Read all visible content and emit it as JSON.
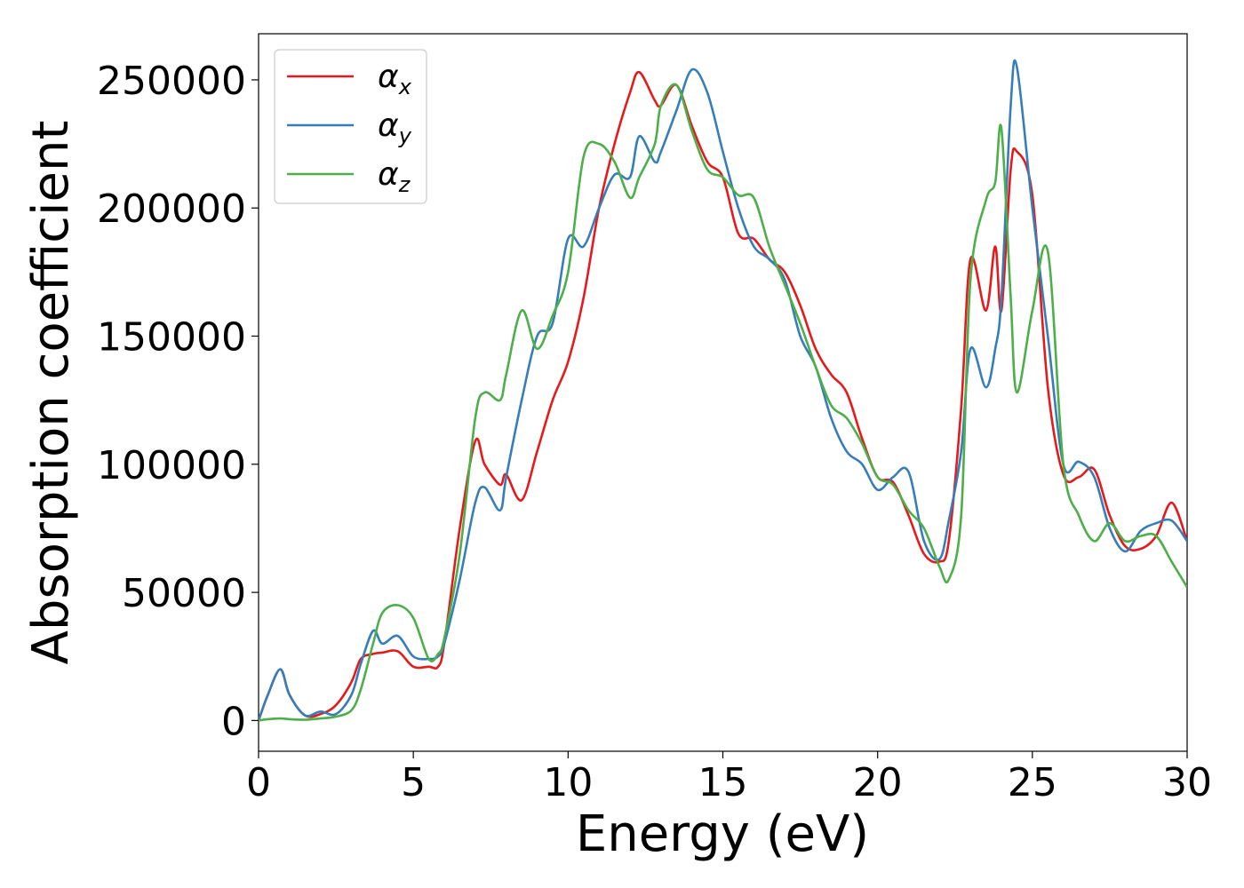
{
  "chart_data": {
    "type": "line",
    "title": "",
    "xlabel": "Energy (eV)",
    "ylabel": "Absorption coefficient",
    "xlim": [
      0,
      30
    ],
    "ylim": [
      -12000,
      268000
    ],
    "xticks": [
      0,
      5,
      10,
      15,
      20,
      25,
      30
    ],
    "xtick_labels": [
      "0",
      "5",
      "10",
      "15",
      "20",
      "25",
      "30"
    ],
    "yticks": [
      0,
      50000,
      100000,
      150000,
      200000,
      250000
    ],
    "ytick_labels": [
      "0",
      "50000",
      "100000",
      "150000",
      "200000",
      "250000"
    ],
    "grid": false,
    "legend_position": "top-left",
    "series": [
      {
        "name": "α",
        "subscript": "x",
        "color": "#e41a1c",
        "x": [
          0,
          0.3,
          0.7,
          1.0,
          1.5,
          2.0,
          2.5,
          3.0,
          3.3,
          3.7,
          4.0,
          4.5,
          5.0,
          5.5,
          5.8,
          6.0,
          6.5,
          7.0,
          7.3,
          7.8,
          8.0,
          8.5,
          9.0,
          9.5,
          10.0,
          10.5,
          11.0,
          11.5,
          12.0,
          12.3,
          12.8,
          13.0,
          13.5,
          14.0,
          14.5,
          15.0,
          15.5,
          16.0,
          16.5,
          17.0,
          17.5,
          18.0,
          18.5,
          19.0,
          19.5,
          20.0,
          20.5,
          21.0,
          21.5,
          22.0,
          22.3,
          22.7,
          23.0,
          23.5,
          23.8,
          24.0,
          24.3,
          24.5,
          25.0,
          25.5,
          26.0,
          26.5,
          27.0,
          27.5,
          28.0,
          28.5,
          29.0,
          29.5,
          30.0
        ],
        "y": [
          0,
          10000,
          20000,
          10000,
          2000,
          2500,
          6000,
          15000,
          24000,
          26000,
          26500,
          27000,
          21000,
          21000,
          21000,
          30000,
          75000,
          109000,
          100000,
          92000,
          96000,
          86000,
          105000,
          125000,
          140000,
          165000,
          200000,
          225000,
          245000,
          253000,
          242000,
          240000,
          248000,
          232000,
          218000,
          212000,
          190000,
          188000,
          180000,
          175000,
          162000,
          145000,
          135000,
          128000,
          110000,
          95000,
          93000,
          80000,
          65000,
          62000,
          70000,
          122000,
          180000,
          160000,
          185000,
          160000,
          215000,
          222000,
          205000,
          130000,
          96000,
          95000,
          98000,
          80000,
          68000,
          67000,
          72000,
          85000,
          70000
        ]
      },
      {
        "name": "α",
        "subscript": "y",
        "color": "#377eb8",
        "x": [
          0,
          0.3,
          0.7,
          1.0,
          1.5,
          2.0,
          2.5,
          3.0,
          3.3,
          3.7,
          4.0,
          4.5,
          5.0,
          5.5,
          5.8,
          6.0,
          6.5,
          7.0,
          7.3,
          7.8,
          8.0,
          8.5,
          9.0,
          9.5,
          10.0,
          10.5,
          11.0,
          11.5,
          12.0,
          12.3,
          12.8,
          13.0,
          13.5,
          14.0,
          14.5,
          15.0,
          15.5,
          16.0,
          16.5,
          17.0,
          17.5,
          18.0,
          18.5,
          19.0,
          19.5,
          20.0,
          20.5,
          21.0,
          21.5,
          22.0,
          22.3,
          22.7,
          23.0,
          23.5,
          23.8,
          24.0,
          24.3,
          24.5,
          25.0,
          25.5,
          26.0,
          26.5,
          27.0,
          27.5,
          28.0,
          28.5,
          29.0,
          29.5,
          30.0
        ],
        "y": [
          0,
          10000,
          20000,
          10000,
          2000,
          3500,
          2500,
          10000,
          22000,
          35000,
          30000,
          33000,
          25000,
          24000,
          25000,
          30000,
          55000,
          85000,
          91000,
          82000,
          95000,
          125000,
          150000,
          155000,
          188000,
          185000,
          200000,
          213000,
          212000,
          228000,
          218000,
          222000,
          238000,
          254000,
          245000,
          222000,
          200000,
          185000,
          180000,
          172000,
          150000,
          138000,
          118000,
          105000,
          100000,
          90000,
          95000,
          97000,
          70000,
          63000,
          78000,
          105000,
          145000,
          130000,
          145000,
          165000,
          240000,
          255000,
          200000,
          150000,
          100000,
          101000,
          95000,
          75000,
          66000,
          74000,
          77000,
          78000,
          70000
        ]
      },
      {
        "name": "α",
        "subscript": "z",
        "color": "#4daf4a",
        "x": [
          0,
          0.3,
          0.7,
          1.0,
          1.5,
          2.0,
          2.5,
          3.0,
          3.3,
          3.7,
          4.0,
          4.5,
          5.0,
          5.5,
          5.8,
          6.0,
          6.5,
          7.0,
          7.3,
          7.8,
          8.0,
          8.5,
          9.0,
          9.5,
          10.0,
          10.5,
          11.0,
          11.5,
          12.0,
          12.3,
          12.8,
          13.0,
          13.5,
          14.0,
          14.5,
          15.0,
          15.5,
          16.0,
          16.5,
          17.0,
          17.5,
          18.0,
          18.5,
          19.0,
          19.5,
          20.0,
          20.5,
          21.0,
          21.5,
          22.0,
          22.3,
          22.7,
          23.0,
          23.5,
          23.8,
          24.0,
          24.3,
          24.5,
          25.0,
          25.5,
          26.0,
          26.5,
          27.0,
          27.5,
          28.0,
          28.5,
          29.0,
          29.5,
          30.0
        ],
        "y": [
          0,
          500,
          800,
          500,
          300,
          800,
          1500,
          4000,
          12000,
          30000,
          42000,
          45000,
          40000,
          24000,
          26000,
          32000,
          65000,
          118000,
          128000,
          125000,
          135000,
          160000,
          145000,
          158000,
          175000,
          220000,
          225000,
          218000,
          204000,
          212000,
          225000,
          240000,
          248000,
          230000,
          215000,
          212000,
          205000,
          204000,
          185000,
          170000,
          155000,
          138000,
          123000,
          118000,
          108000,
          95000,
          92000,
          82000,
          75000,
          60000,
          55000,
          80000,
          172000,
          203000,
          210000,
          231000,
          165000,
          128000,
          160000,
          183000,
          100000,
          80000,
          70000,
          77000,
          70000,
          72000,
          72000,
          62000,
          52000
        ]
      }
    ]
  }
}
